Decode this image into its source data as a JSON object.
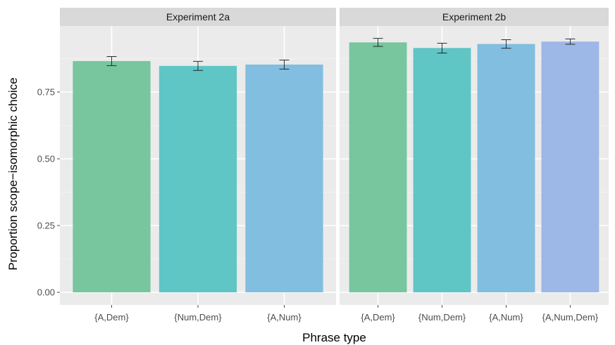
{
  "chart_data": {
    "type": "bar",
    "xlabel": "Phrase type",
    "ylabel": "Proportion scope−isomorphic choice",
    "ylim": [
      0,
      1.0
    ],
    "y_ticks": [
      0,
      0.25,
      0.5,
      0.75
    ],
    "y_tick_labels": [
      "0.00",
      "0.25",
      "0.50",
      "0.75"
    ],
    "grid": true,
    "background": "#ebebeb",
    "colors": {
      "{A,Dem}": "#77c69e",
      "{Num,Dem}": "#5fc5c5",
      "{A,Num}": "#81bee0",
      "{A,Num,Dem}": "#9db7e6"
    },
    "panels": [
      {
        "title": "Experiment 2a",
        "categories": [
          "{A,Dem}",
          "{Num,Dem}",
          "{A,Num}"
        ],
        "values": [
          0.866,
          0.848,
          0.853
        ],
        "error_low": [
          0.849,
          0.831,
          0.836
        ],
        "error_high": [
          0.883,
          0.865,
          0.87
        ]
      },
      {
        "title": "Experiment 2b",
        "categories": [
          "{A,Dem}",
          "{Num,Dem}",
          "{A,Num}",
          "{A,Num,Dem}"
        ],
        "values": [
          0.936,
          0.915,
          0.93,
          0.939
        ],
        "error_low": [
          0.921,
          0.896,
          0.914,
          0.929
        ],
        "error_high": [
          0.951,
          0.933,
          0.946,
          0.949
        ]
      }
    ]
  }
}
